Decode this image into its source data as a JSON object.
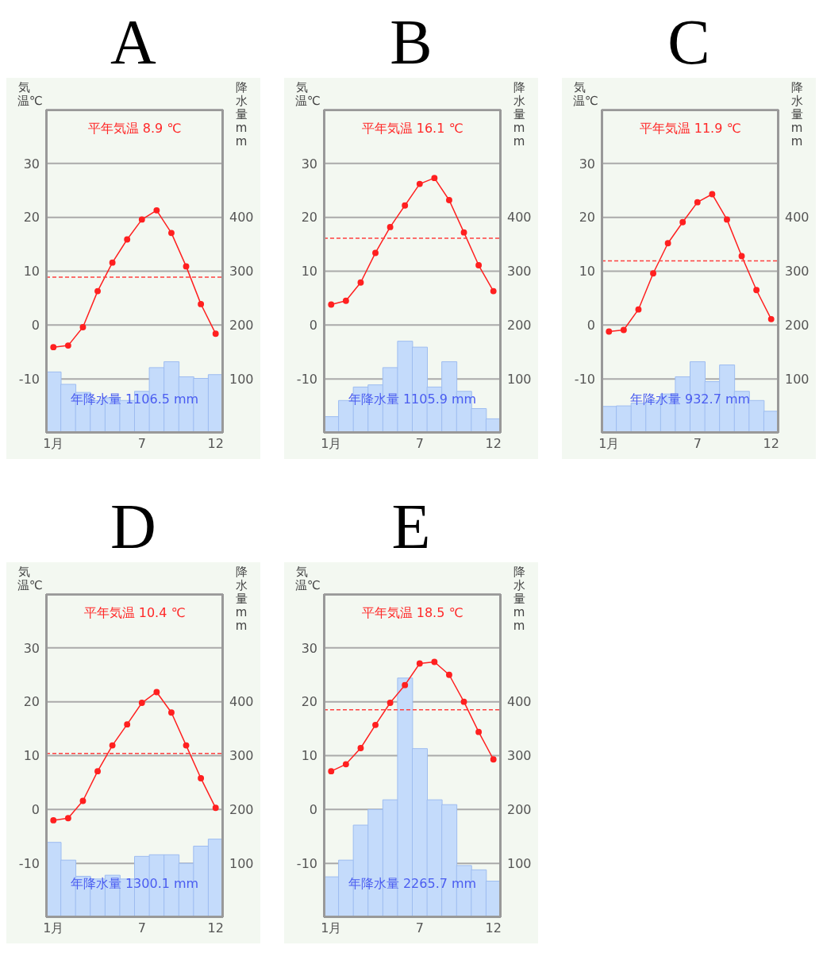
{
  "chart_data": [
    {
      "type": "line",
      "title": "A",
      "ylabel": "気温℃",
      "y2label": "降水量mm",
      "categories": [
        "1月",
        null,
        null,
        null,
        null,
        null,
        "7",
        null,
        null,
        null,
        null,
        "12"
      ],
      "ylim": [
        -20,
        40
      ],
      "yticks": [
        -10,
        0,
        10,
        20,
        30
      ],
      "y2lim": [
        0,
        600
      ],
      "y2ticks": [
        100,
        200,
        300,
        400
      ],
      "grid": "y",
      "legend": false,
      "marker": "circle",
      "ref_lines": [
        {
          "axis": "y",
          "value": 8.9,
          "color": "#ff4040",
          "line_style": "dashed"
        }
      ],
      "annotations": [
        "平年気温 8.9 ℃",
        "年降水量 1106.5 mm"
      ],
      "series": [
        {
          "type": "bar",
          "axis": "y2",
          "color": "#c4dbfb",
          "values": [
            113,
            90,
            75,
            60,
            65,
            60,
            77,
            121,
            132,
            104,
            101,
            108
          ]
        },
        {
          "color": "#ff2020",
          "values": [
            -4.1,
            -3.8,
            -0.4,
            6.3,
            11.6,
            15.9,
            19.6,
            21.3,
            17.1,
            10.9,
            3.9,
            -1.6
          ]
        }
      ]
    },
    {
      "type": "line",
      "title": "B",
      "ylabel": "気温℃",
      "y2label": "降水量mm",
      "categories": [
        "1月",
        null,
        null,
        null,
        null,
        null,
        "7",
        null,
        null,
        null,
        null,
        "12"
      ],
      "ylim": [
        -20,
        40
      ],
      "yticks": [
        -10,
        0,
        10,
        20,
        30
      ],
      "y2lim": [
        0,
        600
      ],
      "y2ticks": [
        100,
        200,
        300,
        400
      ],
      "grid": "y",
      "legend": false,
      "marker": "circle",
      "ref_lines": [
        {
          "axis": "y",
          "value": 16.1,
          "color": "#ff4040",
          "line_style": "dashed"
        }
      ],
      "annotations": [
        "平年気温 16.1 ℃",
        "年降水量 1105.9 mm"
      ],
      "series": [
        {
          "type": "bar",
          "axis": "y2",
          "color": "#c4dbfb",
          "values": [
            30,
            60,
            85,
            89,
            121,
            170,
            159,
            85,
            132,
            77,
            45,
            26
          ]
        },
        {
          "color": "#ff2020",
          "values": [
            3.8,
            4.5,
            7.9,
            13.4,
            18.2,
            22.2,
            26.2,
            27.3,
            23.2,
            17.2,
            11.1,
            6.3
          ]
        }
      ]
    },
    {
      "type": "line",
      "title": "C",
      "ylabel": "気温℃",
      "y2label": "降水量mm",
      "categories": [
        "1月",
        null,
        null,
        null,
        null,
        null,
        "7",
        null,
        null,
        null,
        null,
        "12"
      ],
      "ylim": [
        -20,
        40
      ],
      "yticks": [
        -10,
        0,
        10,
        20,
        30
      ],
      "y2lim": [
        0,
        600
      ],
      "y2ticks": [
        100,
        200,
        300,
        400
      ],
      "grid": "y",
      "legend": false,
      "marker": "circle",
      "ref_lines": [
        {
          "axis": "y",
          "value": 11.9,
          "color": "#ff4040",
          "line_style": "dashed"
        }
      ],
      "annotations": [
        "平年気温 11.9 ℃",
        "年降水量 932.7 mm"
      ],
      "series": [
        {
          "type": "bar",
          "axis": "y2",
          "color": "#c4dbfb",
          "values": [
            49,
            50,
            55,
            60,
            72,
            104,
            132,
            95,
            126,
            77,
            60,
            40
          ]
        },
        {
          "color": "#ff2020",
          "values": [
            -1.2,
            -0.9,
            2.9,
            9.6,
            15.2,
            19.1,
            22.8,
            24.3,
            19.6,
            12.8,
            6.5,
            1.1
          ]
        }
      ]
    },
    {
      "type": "line",
      "title": "D",
      "ylabel": "気温℃",
      "y2label": "降水量mm",
      "categories": [
        "1月",
        null,
        null,
        null,
        null,
        null,
        "7",
        null,
        null,
        null,
        null,
        "12"
      ],
      "ylim": [
        -20,
        40
      ],
      "yticks": [
        -10,
        0,
        10,
        20,
        30
      ],
      "y2lim": [
        0,
        600
      ],
      "y2ticks": [
        100,
        200,
        300,
        400
      ],
      "grid": "y",
      "legend": false,
      "marker": "circle",
      "ref_lines": [
        {
          "axis": "y",
          "value": 10.4,
          "color": "#ff4040",
          "line_style": "dashed"
        }
      ],
      "annotations": [
        "平年気温 10.4 ℃",
        "年降水量 1300.1 mm"
      ],
      "series": [
        {
          "type": "bar",
          "axis": "y2",
          "color": "#c4dbfb",
          "values": [
            139,
            106,
            76,
            71,
            78,
            71,
            113,
            116,
            116,
            100,
            132,
            145
          ]
        },
        {
          "color": "#ff2020",
          "values": [
            -2.0,
            -1.6,
            1.6,
            7.1,
            11.9,
            15.8,
            19.8,
            21.8,
            18.0,
            11.9,
            5.8,
            0.3
          ]
        }
      ]
    },
    {
      "type": "line",
      "title": "E",
      "ylabel": "気温℃",
      "y2label": "降水量mm",
      "categories": [
        "1月",
        null,
        null,
        null,
        null,
        null,
        "7",
        null,
        null,
        null,
        null,
        "12"
      ],
      "ylim": [
        -20,
        40
      ],
      "yticks": [
        -10,
        0,
        10,
        20,
        30
      ],
      "y2lim": [
        0,
        600
      ],
      "y2ticks": [
        100,
        200,
        300,
        400
      ],
      "grid": "y",
      "legend": false,
      "marker": "circle",
      "ref_lines": [
        {
          "axis": "y",
          "value": 18.5,
          "color": "#ff4040",
          "line_style": "dashed"
        }
      ],
      "annotations": [
        "平年気温 18.5 ℃",
        "年降水量 2265.7 mm"
      ],
      "series": [
        {
          "type": "bar",
          "axis": "y2",
          "color": "#c4dbfb",
          "values": [
            75,
            106,
            171,
            200,
            218,
            444,
            313,
            218,
            209,
            96,
            88,
            67
          ]
        },
        {
          "color": "#ff2020",
          "values": [
            7.1,
            8.4,
            11.4,
            15.7,
            19.8,
            23.1,
            27.1,
            27.4,
            25.0,
            20.0,
            14.4,
            9.3
          ]
        }
      ]
    }
  ]
}
